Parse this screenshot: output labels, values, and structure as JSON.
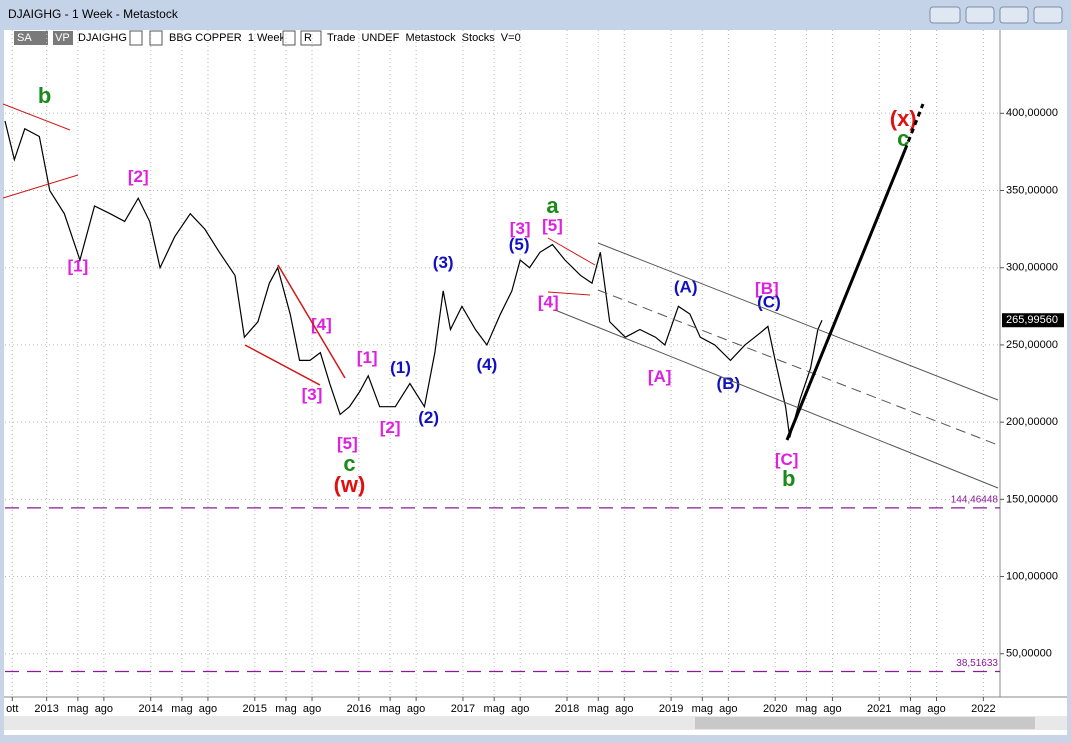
{
  "window": {
    "title": "DJAIGHG - 1 Week - Metastock",
    "toolbar": [
      "SA",
      "VP",
      "DJAIGHG",
      "BBG COPPER  1 Week",
      "R",
      "Trade  UNDEF  Metastock  Stocks  V=0"
    ]
  },
  "chart_data": {
    "type": "line",
    "x": [
      2012.6,
      2012.69,
      2012.79,
      2012.93,
      2013.03,
      2013.17,
      2013.32,
      2013.46,
      2013.61,
      2013.75,
      2013.88,
      2013.99,
      2014.09,
      2014.23,
      2014.38,
      2014.52,
      2014.66,
      2014.81,
      2014.9,
      2015.03,
      2015.14,
      2015.22,
      2015.34,
      2015.43,
      2015.53,
      2015.63,
      2015.72,
      2015.82,
      2015.91,
      2016.01,
      2016.09,
      2016.2,
      2016.35,
      2016.49,
      2016.63,
      2016.73,
      2016.81,
      2016.88,
      2016.99,
      2017.12,
      2017.23,
      2017.36,
      2017.47,
      2017.55,
      2017.64,
      2017.74,
      2017.86,
      2017.98,
      2018.13,
      2018.24,
      2018.32,
      2018.41,
      2018.56,
      2018.7,
      2018.85,
      2018.94,
      2019.07,
      2019.18,
      2019.28,
      2019.42,
      2019.57,
      2019.71,
      2019.86,
      2019.93,
      2020.0,
      2020.1,
      2020.14,
      2020.24,
      2020.34,
      2020.41,
      2020.45
    ],
    "series": [
      {
        "name": "DJAIGHG",
        "color": "#000000",
        "values": [
          395,
          370,
          390,
          385,
          350,
          335,
          305,
          340,
          335,
          330,
          345,
          330,
          300,
          320,
          335,
          325,
          310,
          295,
          255,
          265,
          290,
          300,
          270,
          240,
          240,
          245,
          225,
          205,
          210,
          220,
          230,
          210,
          210,
          225,
          210,
          245,
          285,
          260,
          275,
          260,
          250,
          270,
          285,
          305,
          300,
          310,
          315,
          305,
          295,
          290,
          310,
          265,
          255,
          260,
          255,
          250,
          275,
          270,
          255,
          250,
          240,
          250,
          258,
          262,
          240,
          210,
          190,
          215,
          235,
          260,
          266
        ]
      }
    ],
    "xlim": [
      2012.6,
      2022.16
    ],
    "ylim": [
      22,
      441
    ],
    "xticks": [
      {
        "value": 2012.67,
        "label": "ott"
      },
      {
        "value": 2013,
        "label": "2013"
      },
      {
        "value": 2013.3,
        "label": "mag"
      },
      {
        "value": 2013.55,
        "label": "ago"
      },
      {
        "value": 2014,
        "label": "2014"
      },
      {
        "value": 2014.3,
        "label": "mag"
      },
      {
        "value": 2014.55,
        "label": "ago"
      },
      {
        "value": 2015,
        "label": "2015"
      },
      {
        "value": 2015.3,
        "label": "mag"
      },
      {
        "value": 2015.55,
        "label": "ago"
      },
      {
        "value": 2016,
        "label": "2016"
      },
      {
        "value": 2016.3,
        "label": "mag"
      },
      {
        "value": 2016.55,
        "label": "ago"
      },
      {
        "value": 2017,
        "label": "2017"
      },
      {
        "value": 2017.3,
        "label": "mag"
      },
      {
        "value": 2017.55,
        "label": "ago"
      },
      {
        "value": 2018,
        "label": "2018"
      },
      {
        "value": 2018.3,
        "label": "mag"
      },
      {
        "value": 2018.55,
        "label": "ago"
      },
      {
        "value": 2019,
        "label": "2019"
      },
      {
        "value": 2019.3,
        "label": "mag"
      },
      {
        "value": 2019.55,
        "label": "ago"
      },
      {
        "value": 2020,
        "label": "2020"
      },
      {
        "value": 2020.3,
        "label": "mag"
      },
      {
        "value": 2020.55,
        "label": "ago"
      },
      {
        "value": 2021,
        "label": "2021"
      },
      {
        "value": 2021.3,
        "label": "mag"
      },
      {
        "value": 2021.55,
        "label": "ago"
      },
      {
        "value": 2022,
        "label": "2022"
      }
    ],
    "yticks": [
      {
        "value": 50,
        "label": "50,00000"
      },
      {
        "value": 100,
        "label": "100,00000"
      },
      {
        "value": 150,
        "label": "150,00000"
      },
      {
        "value": 200,
        "label": "200,00000"
      },
      {
        "value": 250,
        "label": "250,00000"
      },
      {
        "value": 300,
        "label": "300,00000"
      },
      {
        "value": 350,
        "label": "350,00000"
      },
      {
        "value": 400,
        "label": "400,00000"
      }
    ],
    "grid": true,
    "levels": [
      {
        "value": 144.46448,
        "label": "144,46448",
        "color": "#8a1a9a"
      },
      {
        "value": 38.51633,
        "label": "38,51633",
        "color": "#8a1a9a"
      }
    ],
    "last_price": {
      "value": 265.9956,
      "label": "265,99560"
    },
    "annotations": [
      {
        "text": "b",
        "color": "#1a8a1a",
        "x": 2012.98,
        "y": 410.4
      },
      {
        "text": "[1]",
        "color": "#e020e0",
        "x": 2013.3,
        "y": 300.3
      },
      {
        "text": "[2]",
        "color": "#e020e0",
        "x": 2013.88,
        "y": 358.5
      },
      {
        "text": "[4]",
        "color": "#e020e0",
        "x": 2015.64,
        "y": 262.7
      },
      {
        "text": "[3]",
        "color": "#e020e0",
        "x": 2015.55,
        "y": 217.4
      },
      {
        "text": "[5]",
        "color": "#e020e0",
        "x": 2015.89,
        "y": 185.6
      },
      {
        "text": "c",
        "color": "#1a8a1a",
        "x": 2015.91,
        "y": 172
      },
      {
        "text": "(w)",
        "color": "#e01010",
        "x": 2015.91,
        "y": 158.4
      },
      {
        "text": "[1]",
        "color": "#e020e0",
        "x": 2016.08,
        "y": 241.3
      },
      {
        "text": "[2]",
        "color": "#e020e0",
        "x": 2016.3,
        "y": 196
      },
      {
        "text": "(1)",
        "color": "#1010c0",
        "x": 2016.4,
        "y": 234.8
      },
      {
        "text": "(2)",
        "color": "#1010c0",
        "x": 2016.67,
        "y": 202.5
      },
      {
        "text": "(3)",
        "color": "#1010c0",
        "x": 2016.81,
        "y": 302.8
      },
      {
        "text": "(4)",
        "color": "#1010c0",
        "x": 2017.23,
        "y": 236.8
      },
      {
        "text": "(5)",
        "color": "#1010c0",
        "x": 2017.54,
        "y": 314.5
      },
      {
        "text": "[3]",
        "color": "#e020e0",
        "x": 2017.55,
        "y": 324.9
      },
      {
        "text": "[5]",
        "color": "#e020e0",
        "x": 2017.86,
        "y": 326.8
      },
      {
        "text": "a",
        "color": "#1a8a1a",
        "x": 2017.86,
        "y": 339.1
      },
      {
        "text": "[4]",
        "color": "#e020e0",
        "x": 2017.82,
        "y": 277
      },
      {
        "text": "(A)",
        "color": "#1010c0",
        "x": 2019.14,
        "y": 286.7
      },
      {
        "text": "[A]",
        "color": "#e020e0",
        "x": 2018.89,
        "y": 229
      },
      {
        "text": "(B)",
        "color": "#1010c0",
        "x": 2019.55,
        "y": 224.5
      },
      {
        "text": "[B]",
        "color": "#e020e0",
        "x": 2019.92,
        "y": 286
      },
      {
        "text": "(C)",
        "color": "#1010c0",
        "x": 2019.94,
        "y": 277
      },
      {
        "text": "[C]",
        "color": "#e020e0",
        "x": 2020.11,
        "y": 175.3
      },
      {
        "text": "b",
        "color": "#1a8a1a",
        "x": 2020.13,
        "y": 162.3
      },
      {
        "text": "(x)",
        "color": "#e01010",
        "x": 2021.23,
        "y": 395.5
      },
      {
        "text": "c",
        "color": "#1a8a1a",
        "x": 2021.23,
        "y": 382.5
      }
    ]
  }
}
